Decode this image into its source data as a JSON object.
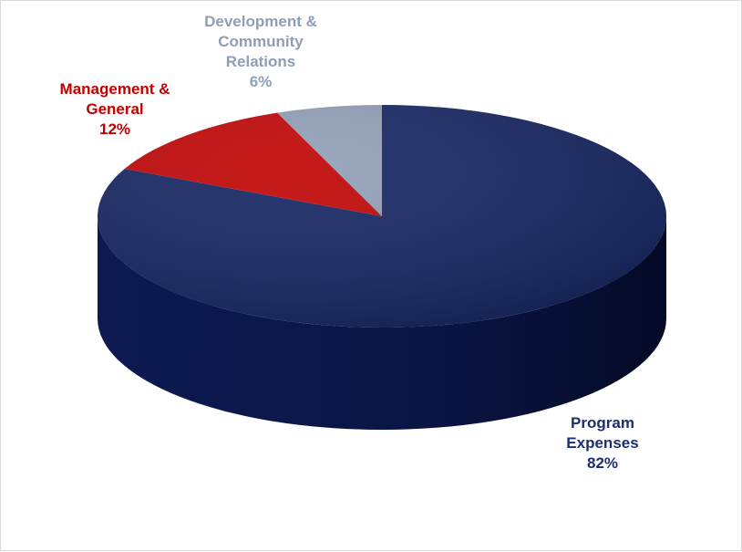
{
  "chart_data": {
    "type": "pie",
    "title": "",
    "slices": [
      {
        "label_lines": [
          "Program",
          "Expenses"
        ],
        "value": 82,
        "value_label": "82%",
        "color": "#102060",
        "label_color": "#1b2f6e"
      },
      {
        "label_lines": [
          "Management &",
          "General"
        ],
        "value": 12,
        "value_label": "12%",
        "color": "#c00000",
        "label_color": "#c00000"
      },
      {
        "label_lines": [
          "Development &",
          "Community",
          "Relations"
        ],
        "value": 6,
        "value_label": "6%",
        "color": "#8f9db5",
        "label_color": "#8f9db5"
      }
    ],
    "start": "12 o'clock",
    "direction": "clockwise",
    "legend": "none",
    "style": "3d"
  }
}
